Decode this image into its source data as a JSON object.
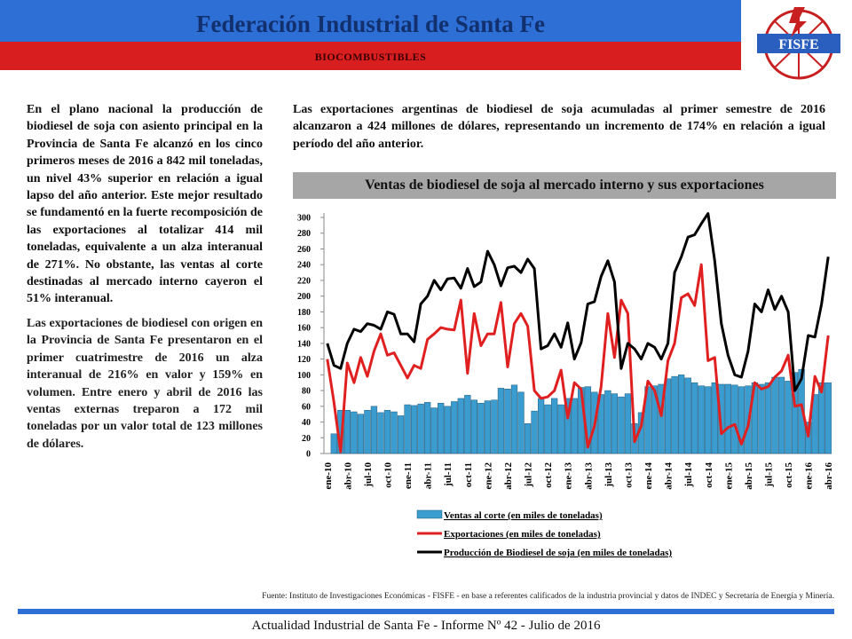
{
  "header": {
    "title": "Federación Industrial de Santa Fe",
    "section": "BIOCOMBUSTIBLES",
    "logo": "FISFE"
  },
  "left_paragraphs": [
    "En el plano nacional la producción de biodiesel de soja con asiento principal en la Provincia de Santa Fe alcanzó en los cinco primeros meses de 2016 a 842 mil toneladas, un nivel 43% superior en relación a igual lapso del año anterior. Este mejor resultado se fundamentó en la fuerte recomposición de las exportaciones al totalizar 414 mil toneladas, equivalente a un alza interanual de 271%. No obstante, las ventas al corte destinadas al mercado interno cayeron el 51% interanual.",
    "Las exportaciones de biodiesel con origen en la Provincia de Santa Fe presentaron en el primer cuatrimestre de 2016 un alza interanual de 216% en valor y 159% en volumen. Entre enero y abril de 2016 las ventas externas treparon a 172 mil toneladas por un valor total de 123 millones de dólares."
  ],
  "right_paragraph": "Las exportaciones argentinas de biodiesel de soja acumuladas al primer semestre de 2016 alcanzaron a 424 millones de dólares, representando un incremento de 174% en relación a igual período del año anterior.",
  "chart_data": {
    "type": "bar_line",
    "title": "Ventas de biodiesel de soja al mercado interno y sus exportaciones",
    "categories": [
      "ene-10",
      null,
      null,
      "abr-10",
      null,
      null,
      "jul-10",
      null,
      null,
      "oct-10",
      null,
      null,
      "ene-11",
      null,
      null,
      "abr-11",
      null,
      null,
      "jul-11",
      null,
      null,
      "oct-11",
      null,
      null,
      "ene-12",
      null,
      null,
      "abr-12",
      null,
      null,
      "jul-12",
      null,
      null,
      "oct-12",
      null,
      null,
      "ene-13",
      null,
      null,
      "abr-13",
      null,
      null,
      "jul-13",
      null,
      null,
      "oct-13",
      null,
      null,
      "ene-14",
      null,
      null,
      "abr-14",
      null,
      null,
      "jul-14",
      null,
      null,
      "oct-14",
      null,
      null,
      "ene-15",
      null,
      null,
      "abr-15",
      null,
      null,
      "jul-15",
      null,
      null,
      "oct-15",
      null,
      null,
      "ene-16",
      null,
      null,
      "abr-16"
    ],
    "series": [
      {
        "name": "Ventas al corte (en miles de toneladas)",
        "color": "#3b9ccf",
        "kind": "bar",
        "values": [
          0,
          25,
          55,
          55,
          53,
          50,
          55,
          60,
          52,
          55,
          53,
          48,
          62,
          61,
          63,
          65,
          58,
          64,
          60,
          66,
          70,
          74,
          68,
          64,
          67,
          68,
          83,
          82,
          87,
          78,
          38,
          54,
          70,
          62,
          70,
          62,
          70,
          70,
          84,
          85,
          78,
          75,
          80,
          76,
          72,
          76,
          38,
          52,
          85,
          86,
          88,
          95,
          98,
          100,
          96,
          90,
          86,
          85,
          90,
          88,
          88,
          87,
          85,
          86,
          90,
          88,
          90,
          97,
          97,
          92,
          103,
          107,
          40,
          75,
          90,
          90
        ]
      },
      {
        "name": "Exportaciones (en miles de toneladas)",
        "color": "#e02020",
        "kind": "line",
        "values": [
          120,
          65,
          2,
          115,
          90,
          122,
          98,
          130,
          152,
          125,
          128,
          112,
          96,
          112,
          108,
          145,
          152,
          160,
          158,
          157,
          195,
          102,
          178,
          137,
          152,
          152,
          192,
          110,
          165,
          178,
          162,
          80,
          70,
          72,
          80,
          106,
          45,
          90,
          82,
          8,
          35,
          85,
          178,
          122,
          195,
          178,
          15,
          35,
          92,
          80,
          48,
          118,
          140,
          198,
          203,
          188,
          240,
          118,
          122,
          25,
          33,
          37,
          12,
          35,
          90,
          82,
          85,
          97,
          105,
          125,
          60,
          62,
          22,
          98,
          78,
          150
        ]
      },
      {
        "name": "Producción de Biodiesel de soja (en miles de toneladas)",
        "color": "#000000",
        "kind": "line",
        "values": [
          140,
          112,
          108,
          140,
          158,
          155,
          165,
          163,
          158,
          180,
          177,
          152,
          152,
          142,
          190,
          200,
          220,
          208,
          222,
          223,
          210,
          235,
          212,
          218,
          257,
          240,
          213,
          236,
          238,
          230,
          247,
          235,
          133,
          137,
          152,
          135,
          166,
          120,
          141,
          190,
          193,
          225,
          245,
          218,
          108,
          140,
          133,
          120,
          140,
          135,
          120,
          140,
          230,
          250,
          275,
          278,
          292,
          305,
          245,
          165,
          125,
          100,
          97,
          130,
          190,
          180,
          208,
          183,
          200,
          180,
          80,
          95,
          150,
          148,
          190,
          250
        ]
      }
    ],
    "ylim": [
      0,
      300
    ],
    "yticks": [
      0,
      20,
      40,
      60,
      80,
      100,
      120,
      140,
      160,
      180,
      200,
      220,
      240,
      260,
      280,
      300
    ]
  },
  "source": "Fuente: Instituto de Investigaciones Económicas - FISFE - en base a referentes calificados de la industria provincial y datos de  INDEC y Secretaría de Energía y Minería.",
  "footer": "Actualidad Industrial de Santa Fe - Informe Nº 42 - Julio de 2016"
}
